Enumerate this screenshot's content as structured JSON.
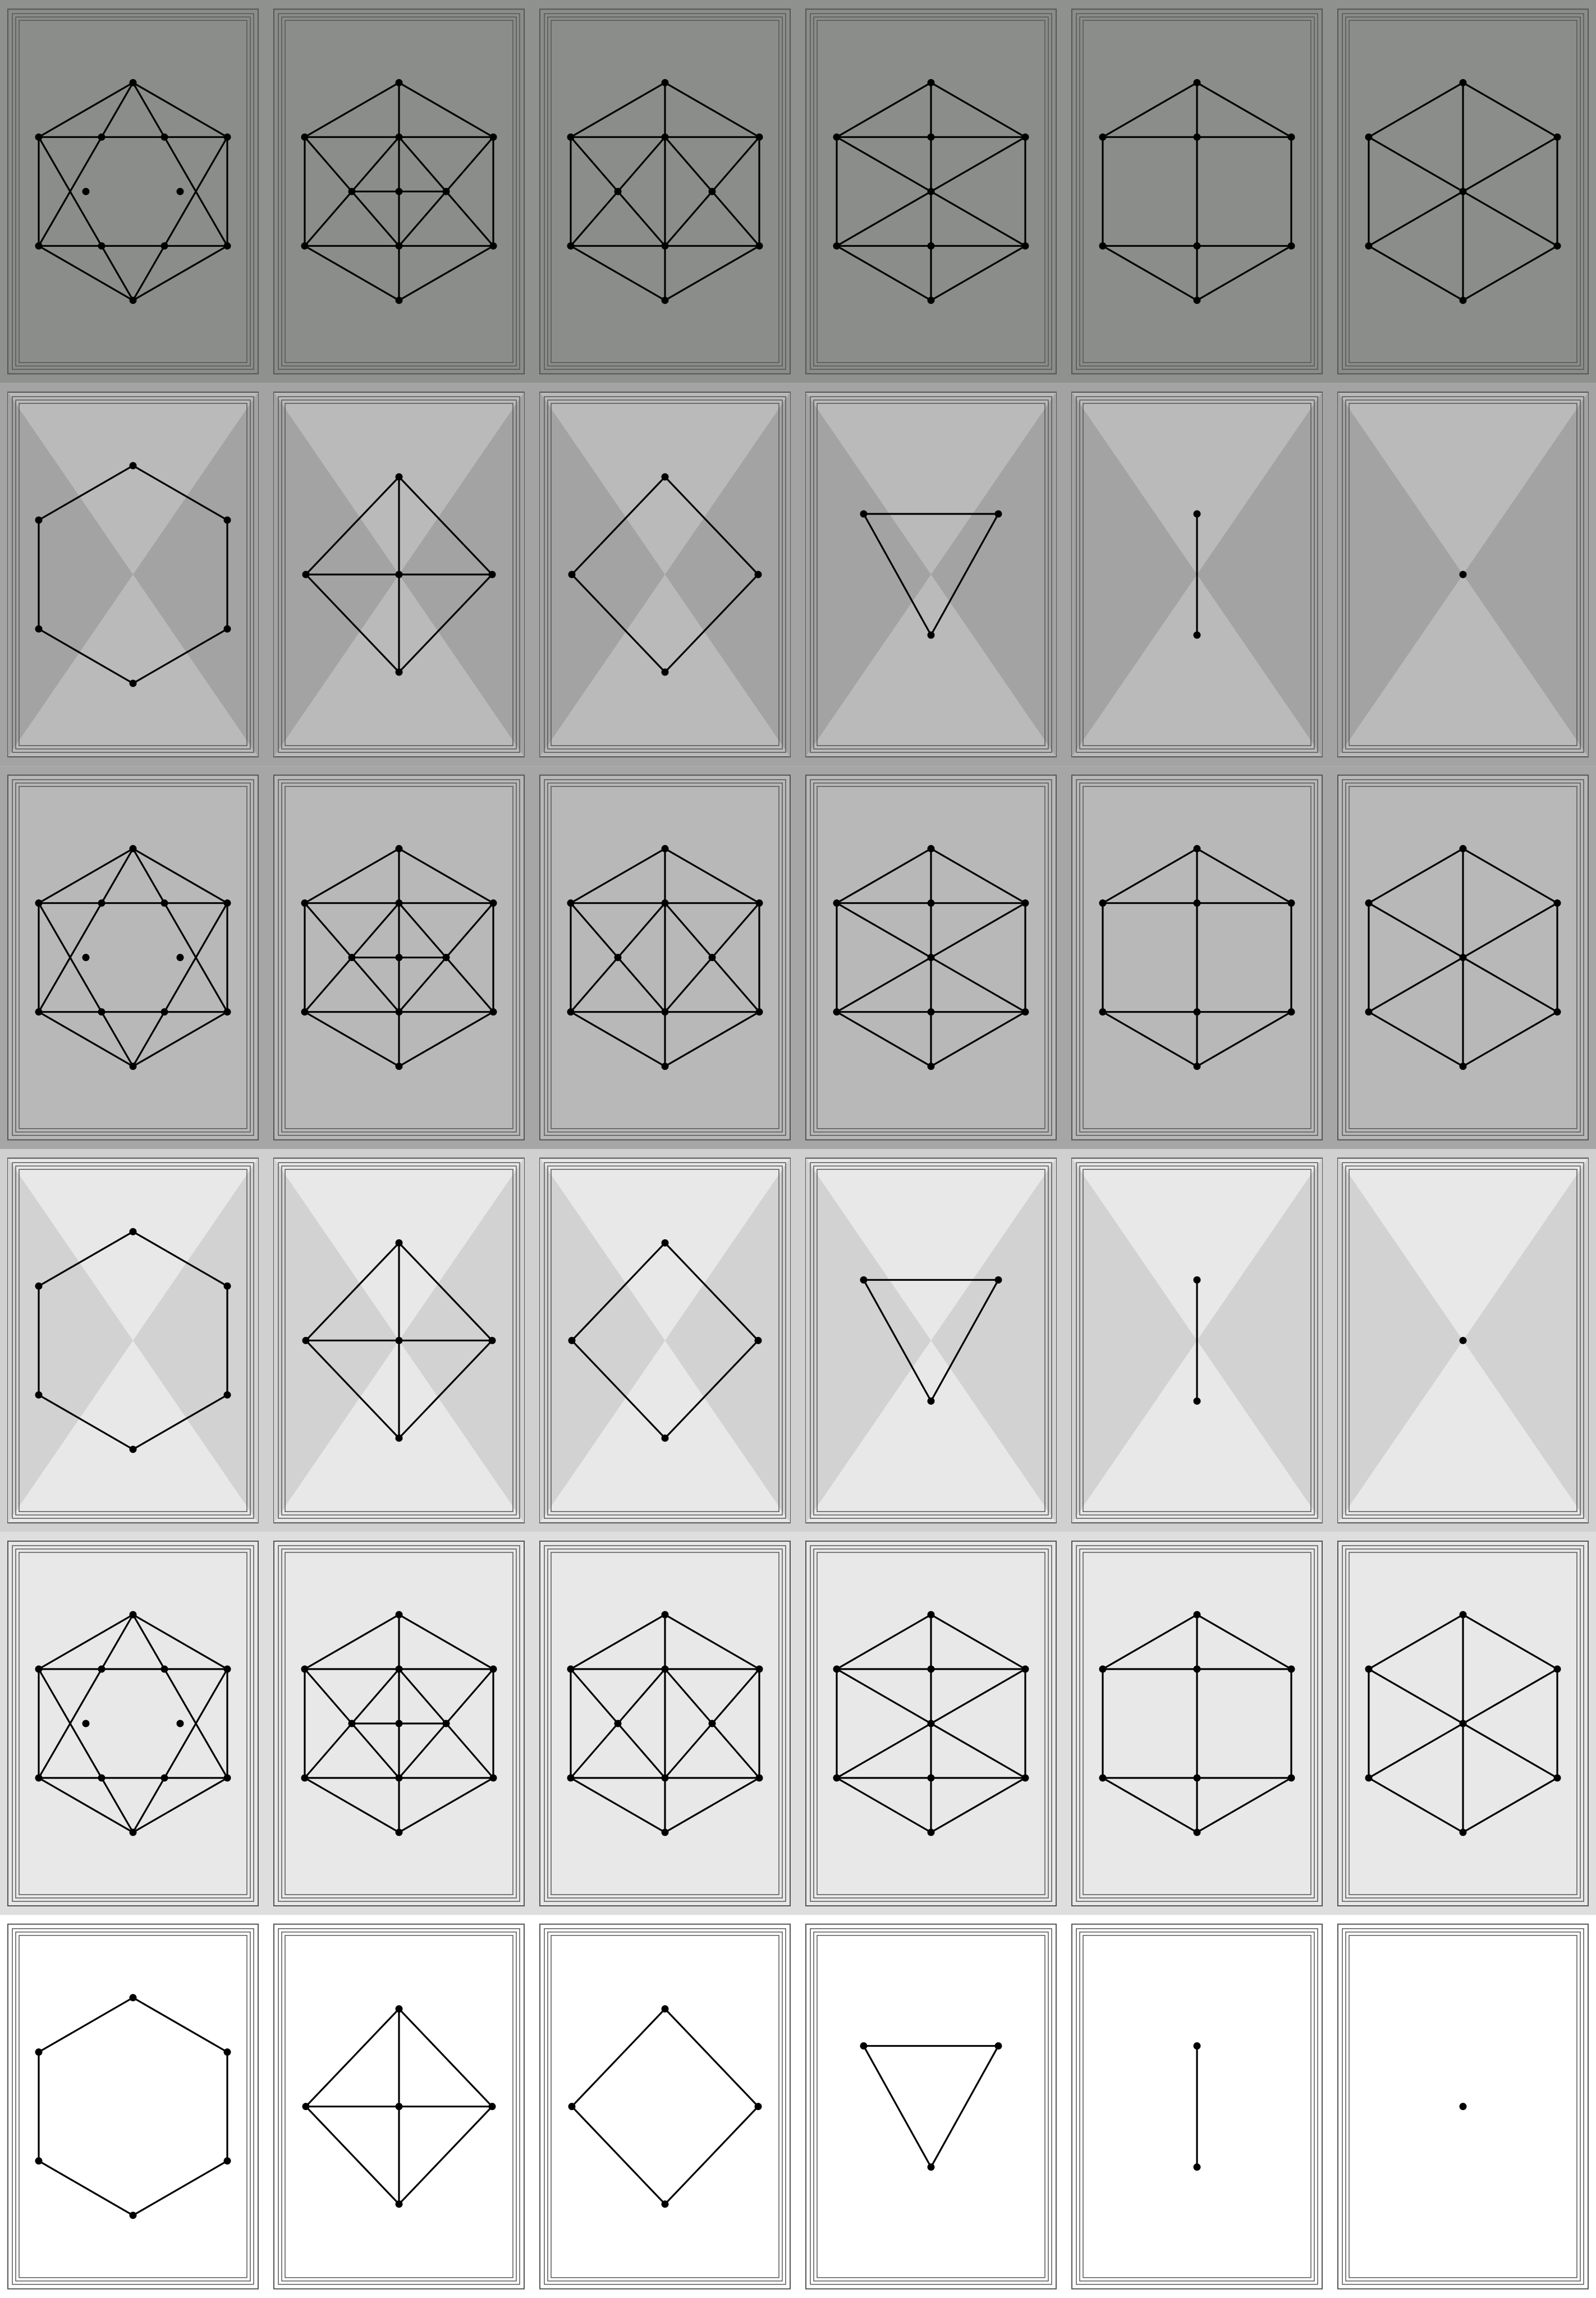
{
  "colors": {
    "ink": "#000000",
    "card_border": "#555555",
    "rows": [
      {
        "band": "#8f918f",
        "card": "#8b8d8b",
        "tri": null
      },
      {
        "band": "#a3a3a3",
        "card": "#bababa",
        "tri": "#a3a3a3"
      },
      {
        "band": "#a6a6a6",
        "card": "#b8b8b8",
        "tri": null
      },
      {
        "band": "#d0d0d0",
        "card": "#e8e8e8",
        "tri": "#d2d2d2"
      },
      {
        "band": "#dedede",
        "card": "#e8e8e8",
        "tri": null
      },
      {
        "band": "#ffffff",
        "card": "#ffffff",
        "tri": null
      }
    ]
  },
  "rows": [
    [
      "hexagram",
      "hex-cross",
      "hex-diamond",
      "hex-star",
      "hex-rect",
      "hex-wheel"
    ],
    [
      "hexagon",
      "rhombus-cross",
      "rhombus",
      "triangle",
      "segment",
      "point"
    ],
    [
      "hexagram",
      "hex-cross",
      "hex-diamond",
      "hex-star",
      "hex-rect",
      "hex-wheel"
    ],
    [
      "hexagon",
      "rhombus-cross",
      "rhombus",
      "triangle",
      "segment",
      "point"
    ],
    [
      "hexagram",
      "hex-cross",
      "hex-diamond",
      "hex-star",
      "hex-rect",
      "hex-wheel"
    ],
    [
      "hexagon",
      "rhombus-cross",
      "rhombus",
      "triangle",
      "segment",
      "point"
    ]
  ]
}
